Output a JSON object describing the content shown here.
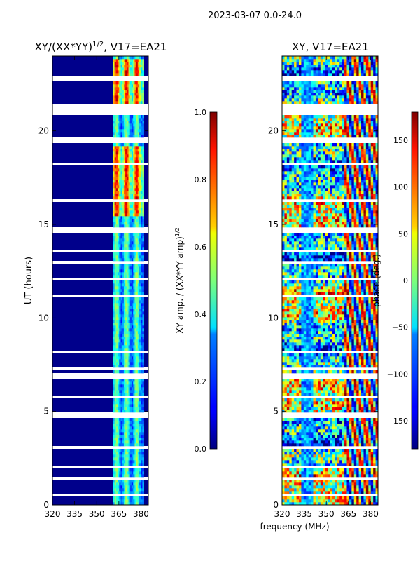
{
  "figure": {
    "suptitle": "2023-03-07 0.0-24.0",
    "xlabel": "frequency (MHz)"
  },
  "chart_data": [
    {
      "type": "heatmap",
      "title_prefix": "XY/(XX*YY)",
      "title_exp": "1/2",
      "title_suffix": ", V17=EA21",
      "ylabel": "UT (hours)",
      "xlim": [
        320,
        385
      ],
      "ylim": [
        0,
        24
      ],
      "xticks": [
        "320",
        "335",
        "350",
        "365",
        "380"
      ],
      "xtick_values": [
        320,
        335,
        350,
        365,
        380
      ],
      "yticks": [
        "0",
        "5",
        "10",
        "15",
        "20"
      ],
      "ytick_values": [
        0,
        5,
        10,
        15,
        20
      ],
      "colorbar": {
        "label_prefix": "XY amp. / (XX*YY amp)",
        "label_exp": "1/2",
        "range": [
          0,
          1
        ],
        "ticks": [
          "0.0",
          "0.2",
          "0.4",
          "0.6",
          "0.8",
          "1.0"
        ],
        "tick_values": [
          0,
          0.2,
          0.4,
          0.6,
          0.8,
          1.0
        ]
      },
      "gaps_ut_hours": [
        0.5,
        1.4,
        2.0,
        3.1,
        4.8,
        5.8,
        6.9,
        7.3,
        8.2,
        11.2,
        12.1,
        13.0,
        13.6,
        14.7,
        16.3,
        18.2,
        19.5,
        21.3,
        22.8
      ],
      "high_band_mhz": [
        361,
        382
      ],
      "description_values": {
        "low_band_level": 0.02,
        "high_band_level_typical": 0.35,
        "high_band_level_peak": 0.75,
        "peak_ut_ranges_hours": [
          [
            15.5,
            19.2
          ],
          [
            21.2,
            23.8
          ]
        ]
      }
    },
    {
      "type": "heatmap",
      "title": "XY, V17=EA21",
      "xlim": [
        320,
        385
      ],
      "ylim": [
        0,
        24
      ],
      "xticks": [
        "320",
        "335",
        "350",
        "365",
        "380"
      ],
      "xtick_values": [
        320,
        335,
        350,
        365,
        380
      ],
      "yticks": [
        "0",
        "5",
        "10",
        "15",
        "20"
      ],
      "ytick_values": [
        0,
        5,
        10,
        15,
        20
      ],
      "colorbar": {
        "label": "phase (deg.)",
        "range": [
          -180,
          180
        ],
        "ticks": [
          "−150",
          "−100",
          "−50",
          "0",
          "50",
          "100",
          "150"
        ],
        "tick_values": [
          -150,
          -100,
          -50,
          0,
          50,
          100,
          150
        ]
      },
      "gaps_ut_hours": [
        0.5,
        1.4,
        2.0,
        3.1,
        4.8,
        5.8,
        6.9,
        7.3,
        8.2,
        11.2,
        12.1,
        13.0,
        13.6,
        14.7,
        16.3,
        18.2,
        19.5,
        21.3,
        22.8
      ]
    }
  ]
}
